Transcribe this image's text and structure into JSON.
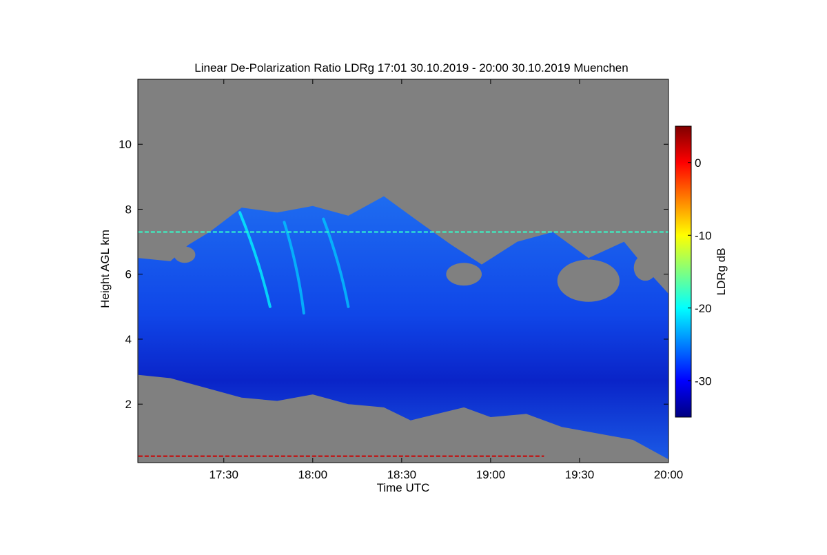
{
  "chart_data": {
    "type": "heatmap",
    "title": "Linear De-Polarization Ratio LDRg   17:01 30.10.2019 - 20:00 30.10.2019 Muenchen",
    "xlabel": "Time UTC",
    "ylabel": "Height AGL km",
    "x_range": [
      "17:01",
      "20:00"
    ],
    "y_range_km": [
      0.2,
      12.0
    ],
    "x_ticks": [
      {
        "label": "17:30",
        "hours": 17.5
      },
      {
        "label": "18:00",
        "hours": 18.0
      },
      {
        "label": "18:30",
        "hours": 18.5
      },
      {
        "label": "19:00",
        "hours": 19.0
      },
      {
        "label": "19:30",
        "hours": 19.5
      },
      {
        "label": "20:00",
        "hours": 20.0
      }
    ],
    "y_ticks": [
      {
        "label": "2",
        "value": 2
      },
      {
        "label": "4",
        "value": 4
      },
      {
        "label": "6",
        "value": 6
      },
      {
        "label": "8",
        "value": 8
      },
      {
        "label": "10",
        "value": 10
      }
    ],
    "colorbar": {
      "label": "LDRg dB",
      "range": [
        -35,
        5
      ],
      "ticks": [
        {
          "label": "0",
          "value": 0
        },
        {
          "label": "-10",
          "value": -10
        },
        {
          "label": "-20",
          "value": -20
        },
        {
          "label": "-30",
          "value": -30
        }
      ],
      "colormap": "jet",
      "no_data_color": "#808080"
    },
    "cloud_top_km": [
      {
        "t": 17.02,
        "h": 6.5
      },
      {
        "t": 17.2,
        "h": 6.4
      },
      {
        "t": 17.3,
        "h": 6.9
      },
      {
        "t": 17.42,
        "h": 7.3
      },
      {
        "t": 17.6,
        "h": 8.05
      },
      {
        "t": 17.8,
        "h": 7.9
      },
      {
        "t": 18.0,
        "h": 8.1
      },
      {
        "t": 18.2,
        "h": 7.8
      },
      {
        "t": 18.4,
        "h": 8.4
      },
      {
        "t": 18.6,
        "h": 7.6
      },
      {
        "t": 18.78,
        "h": 6.9
      },
      {
        "t": 18.95,
        "h": 6.3
      },
      {
        "t": 19.15,
        "h": 7.0
      },
      {
        "t": 19.35,
        "h": 7.3
      },
      {
        "t": 19.55,
        "h": 6.5
      },
      {
        "t": 19.75,
        "h": 7.0
      },
      {
        "t": 19.9,
        "h": 6.0
      },
      {
        "t": 20.0,
        "h": 5.4
      }
    ],
    "cloud_base_km": [
      {
        "t": 17.02,
        "h": 2.9
      },
      {
        "t": 17.2,
        "h": 2.8
      },
      {
        "t": 17.4,
        "h": 2.5
      },
      {
        "t": 17.6,
        "h": 2.2
      },
      {
        "t": 17.8,
        "h": 2.1
      },
      {
        "t": 18.0,
        "h": 2.3
      },
      {
        "t": 18.2,
        "h": 2.0
      },
      {
        "t": 18.4,
        "h": 1.9
      },
      {
        "t": 18.55,
        "h": 1.5
      },
      {
        "t": 18.7,
        "h": 1.7
      },
      {
        "t": 18.85,
        "h": 1.9
      },
      {
        "t": 19.0,
        "h": 1.6
      },
      {
        "t": 19.2,
        "h": 1.7
      },
      {
        "t": 19.4,
        "h": 1.3
      },
      {
        "t": 19.6,
        "h": 1.1
      },
      {
        "t": 19.8,
        "h": 0.9
      },
      {
        "t": 20.0,
        "h": 0.3
      }
    ],
    "gaps_km": [
      {
        "t": 17.28,
        "h": 6.6,
        "w_hours": 0.12,
        "h_km": 0.5
      },
      {
        "t": 18.85,
        "h": 6.0,
        "w_hours": 0.2,
        "h_km": 0.7
      },
      {
        "t": 19.55,
        "h": 5.8,
        "w_hours": 0.35,
        "h_km": 1.3
      },
      {
        "t": 19.87,
        "h": 6.2,
        "w_hours": 0.13,
        "h_km": 0.8
      }
    ],
    "fall_streaks": [
      {
        "t_top": 17.59,
        "h_top": 7.9,
        "t_bottom": 17.76,
        "h_bottom": 5.0,
        "ldr_db": -20
      },
      {
        "t_top": 17.84,
        "h_top": 7.6,
        "t_bottom": 17.95,
        "h_bottom": 4.8,
        "ldr_db": -22
      },
      {
        "t_top": 18.06,
        "h_top": 7.7,
        "t_bottom": 18.2,
        "h_bottom": 5.0,
        "ldr_db": -22
      }
    ],
    "feature_layers": [
      {
        "t_start": 17.02,
        "t_end": 20.0,
        "h": 7.3,
        "ldr_db": -18,
        "desc": "thin layer line"
      },
      {
        "t_start": 17.02,
        "t_end": 19.3,
        "h": 0.4,
        "ldr_db": 2,
        "desc": "near-surface strong return"
      }
    ]
  }
}
